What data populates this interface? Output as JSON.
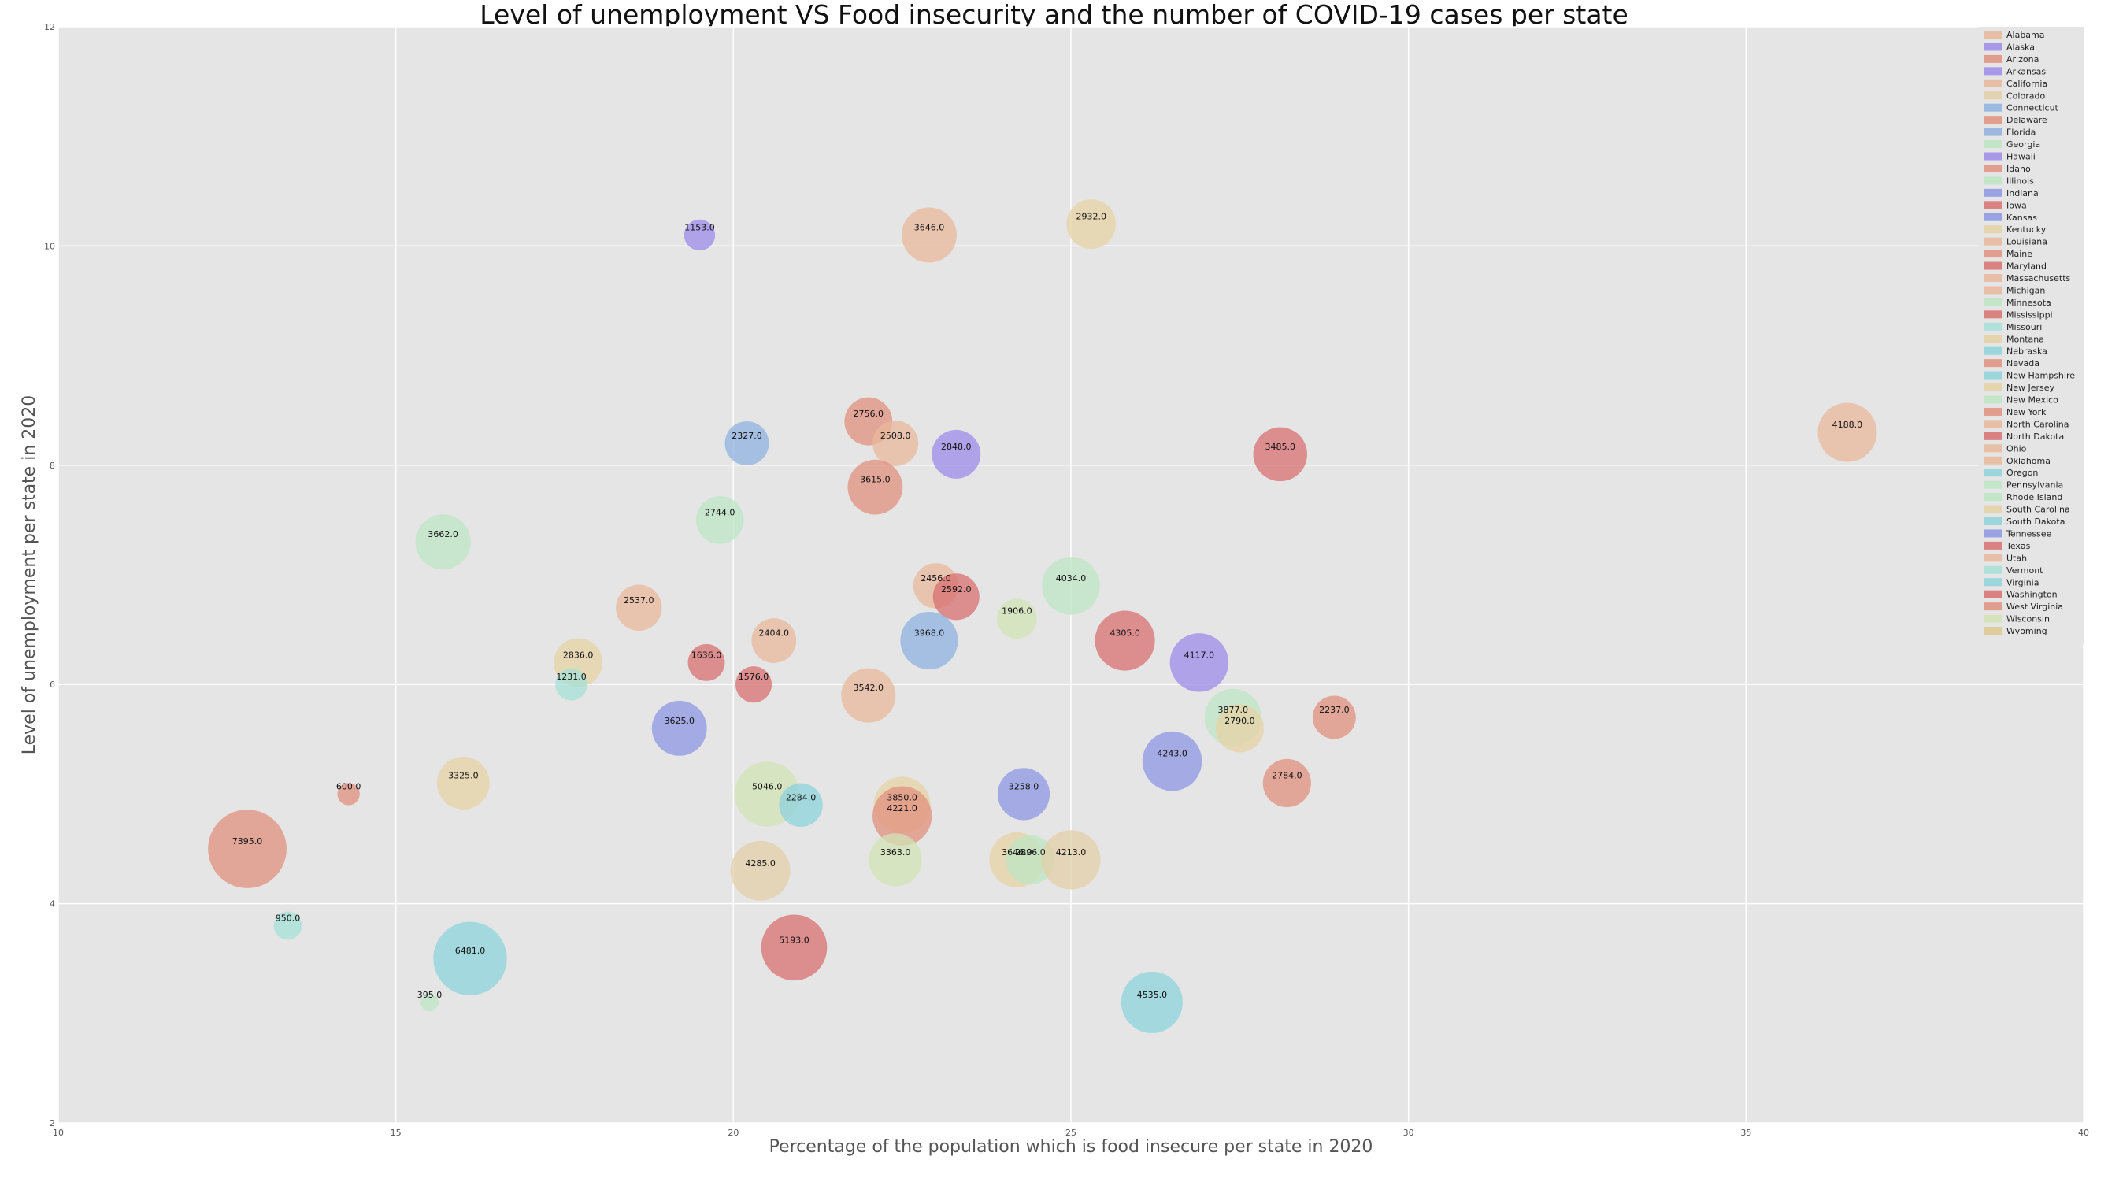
{
  "chart_data": {
    "type": "scatter",
    "title": "Level of unemployment VS Food insecurity and the number of COVID-19 cases per state",
    "xlabel": "Percentage of the population which is food insecure per state in 2020",
    "ylabel": "Level of unemployment per state in 2020",
    "xlim": [
      10,
      40
    ],
    "ylim": [
      2,
      12
    ],
    "xticks": [
      "10",
      "15",
      "20",
      "25",
      "30",
      "35",
      "40"
    ],
    "yticks": [
      "2",
      "4",
      "6",
      "8",
      "10",
      "12"
    ],
    "grid": true,
    "legend_position": "top-right",
    "colors": {
      "plot_bg": "#e5e5e5",
      "grid": "#ffffff",
      "peach": "#e8b89c",
      "purple": "#9d8be8",
      "salmon": "#e0907e",
      "sand": "#e3cfa8",
      "blue": "#8fb2e0",
      "mint": "#bde6c4",
      "red": "#d87070",
      "periwinkle": "#8e97e3",
      "tan": "#e5d2a4",
      "cyan": "#8ed3dc",
      "sage": "#d2e3b5",
      "teal": "#a6e0d8",
      "gold": "#ddc88d"
    },
    "series": [
      {
        "name": "Alabama",
        "color": "peach"
      },
      {
        "name": "Alaska",
        "color": "purple"
      },
      {
        "name": "Arizona",
        "color": "salmon"
      },
      {
        "name": "Arkansas",
        "color": "purple"
      },
      {
        "name": "California",
        "color": "peach"
      },
      {
        "name": "Colorado",
        "color": "sand"
      },
      {
        "name": "Connecticut",
        "color": "blue"
      },
      {
        "name": "Delaware",
        "color": "salmon"
      },
      {
        "name": "Florida",
        "color": "blue"
      },
      {
        "name": "Georgia",
        "color": "mint"
      },
      {
        "name": "Hawaii",
        "color": "purple"
      },
      {
        "name": "Idaho",
        "color": "salmon"
      },
      {
        "name": "Illinois",
        "color": "mint"
      },
      {
        "name": "Indiana",
        "color": "periwinkle"
      },
      {
        "name": "Iowa",
        "color": "red"
      },
      {
        "name": "Kansas",
        "color": "periwinkle"
      },
      {
        "name": "Kentucky",
        "color": "tan"
      },
      {
        "name": "Louisiana",
        "color": "peach"
      },
      {
        "name": "Maine",
        "color": "salmon"
      },
      {
        "name": "Maryland",
        "color": "red"
      },
      {
        "name": "Massachusetts",
        "color": "peach"
      },
      {
        "name": "Michigan",
        "color": "peach"
      },
      {
        "name": "Minnesota",
        "color": "mint"
      },
      {
        "name": "Mississippi",
        "color": "red"
      },
      {
        "name": "Missouri",
        "color": "teal"
      },
      {
        "name": "Montana",
        "color": "tan"
      },
      {
        "name": "Nebraska",
        "color": "cyan"
      },
      {
        "name": "Nevada",
        "color": "salmon"
      },
      {
        "name": "New Hampshire",
        "color": "cyan"
      },
      {
        "name": "New Jersey",
        "color": "tan"
      },
      {
        "name": "New Mexico",
        "color": "mint"
      },
      {
        "name": "New York",
        "color": "salmon"
      },
      {
        "name": "North Carolina",
        "color": "peach"
      },
      {
        "name": "North Dakota",
        "color": "red"
      },
      {
        "name": "Ohio",
        "color": "peach"
      },
      {
        "name": "Oklahoma",
        "color": "peach"
      },
      {
        "name": "Oregon",
        "color": "cyan"
      },
      {
        "name": "Pennsylvania",
        "color": "mint"
      },
      {
        "name": "Rhode Island",
        "color": "mint"
      },
      {
        "name": "South Carolina",
        "color": "tan"
      },
      {
        "name": "South Dakota",
        "color": "cyan"
      },
      {
        "name": "Tennessee",
        "color": "periwinkle"
      },
      {
        "name": "Texas",
        "color": "red"
      },
      {
        "name": "Utah",
        "color": "peach"
      },
      {
        "name": "Vermont",
        "color": "teal"
      },
      {
        "name": "Virginia",
        "color": "cyan"
      },
      {
        "name": "Washington",
        "color": "red"
      },
      {
        "name": "West Virginia",
        "color": "salmon"
      },
      {
        "name": "Wisconsin",
        "color": "sage"
      },
      {
        "name": "Wyoming",
        "color": "gold"
      }
    ],
    "points": [
      {
        "x": 19.5,
        "y": 10.1,
        "value": "1153.0",
        "color": "purple"
      },
      {
        "x": 22.9,
        "y": 10.1,
        "value": "3646.0",
        "color": "peach"
      },
      {
        "x": 25.3,
        "y": 10.2,
        "value": "2932.0",
        "color": "tan"
      },
      {
        "x": 22.0,
        "y": 8.4,
        "value": "2756.0",
        "color": "salmon"
      },
      {
        "x": 22.4,
        "y": 8.2,
        "value": "2508.0",
        "color": "peach"
      },
      {
        "x": 20.2,
        "y": 8.2,
        "value": "2327.0",
        "color": "blue"
      },
      {
        "x": 23.3,
        "y": 8.1,
        "value": "2848.0",
        "color": "purple"
      },
      {
        "x": 28.1,
        "y": 8.1,
        "value": "3485.0",
        "color": "red"
      },
      {
        "x": 36.5,
        "y": 8.3,
        "value": "4188.0",
        "color": "peach"
      },
      {
        "x": 22.1,
        "y": 7.8,
        "value": "3615.0",
        "color": "salmon"
      },
      {
        "x": 19.8,
        "y": 7.5,
        "value": "2744.0",
        "color": "mint"
      },
      {
        "x": 15.7,
        "y": 7.3,
        "value": "3662.0",
        "color": "mint"
      },
      {
        "x": 23.0,
        "y": 6.9,
        "value": "2456.0",
        "color": "peach"
      },
      {
        "x": 23.3,
        "y": 6.8,
        "value": "2592.0",
        "color": "red"
      },
      {
        "x": 25.0,
        "y": 6.9,
        "value": "4034.0",
        "color": "mint"
      },
      {
        "x": 18.6,
        "y": 6.7,
        "value": "2537.0",
        "color": "peach"
      },
      {
        "x": 24.2,
        "y": 6.6,
        "value": "1906.0",
        "color": "sage"
      },
      {
        "x": 20.6,
        "y": 6.4,
        "value": "2404.0",
        "color": "peach"
      },
      {
        "x": 22.9,
        "y": 6.4,
        "value": "3968.0",
        "color": "blue"
      },
      {
        "x": 25.8,
        "y": 6.4,
        "value": "4305.0",
        "color": "red"
      },
      {
        "x": 26.9,
        "y": 6.2,
        "value": "4117.0",
        "color": "purple"
      },
      {
        "x": 17.7,
        "y": 6.2,
        "value": "2836.0",
        "color": "tan"
      },
      {
        "x": 19.6,
        "y": 6.2,
        "value": "1636.0",
        "color": "red"
      },
      {
        "x": 17.6,
        "y": 6.0,
        "value": "1231.0",
        "color": "teal"
      },
      {
        "x": 20.3,
        "y": 6.0,
        "value": "1576.0",
        "color": "red"
      },
      {
        "x": 22.0,
        "y": 5.9,
        "value": "3542.0",
        "color": "peach"
      },
      {
        "x": 27.4,
        "y": 5.7,
        "value": "3877.0",
        "color": "mint"
      },
      {
        "x": 27.5,
        "y": 5.6,
        "value": "2790.0",
        "color": "tan"
      },
      {
        "x": 28.9,
        "y": 5.7,
        "value": "2237.0",
        "color": "salmon"
      },
      {
        "x": 19.2,
        "y": 5.6,
        "value": "3625.0",
        "color": "periwinkle"
      },
      {
        "x": 26.5,
        "y": 5.3,
        "value": "4243.0",
        "color": "periwinkle"
      },
      {
        "x": 16.0,
        "y": 5.1,
        "value": "3325.0",
        "color": "tan"
      },
      {
        "x": 28.2,
        "y": 5.1,
        "value": "2784.0",
        "color": "salmon"
      },
      {
        "x": 14.3,
        "y": 5.0,
        "value": "600.0",
        "color": "salmon"
      },
      {
        "x": 20.5,
        "y": 5.0,
        "value": "5046.0",
        "color": "sage"
      },
      {
        "x": 21.0,
        "y": 4.9,
        "value": "2284.0",
        "color": "cyan"
      },
      {
        "x": 22.5,
        "y": 4.9,
        "value": "3850.0",
        "color": "tan"
      },
      {
        "x": 22.5,
        "y": 4.8,
        "value": "4221.0",
        "color": "salmon"
      },
      {
        "x": 24.3,
        "y": 5.0,
        "value": "3258.0",
        "color": "periwinkle"
      },
      {
        "x": 12.8,
        "y": 4.5,
        "value": "7395.0",
        "color": "salmon"
      },
      {
        "x": 22.4,
        "y": 4.4,
        "value": "3363.0",
        "color": "sage"
      },
      {
        "x": 24.2,
        "y": 4.4,
        "value": "3646.0",
        "color": "tan"
      },
      {
        "x": 24.4,
        "y": 4.4,
        "value": "2896.0",
        "color": "mint"
      },
      {
        "x": 25.0,
        "y": 4.4,
        "value": "4213.0",
        "color": "sand"
      },
      {
        "x": 20.4,
        "y": 4.3,
        "value": "4285.0",
        "color": "sand"
      },
      {
        "x": 13.4,
        "y": 3.8,
        "value": "950.0",
        "color": "teal"
      },
      {
        "x": 16.1,
        "y": 3.5,
        "value": "6481.0",
        "color": "cyan"
      },
      {
        "x": 20.9,
        "y": 3.6,
        "value": "5193.0",
        "color": "red"
      },
      {
        "x": 15.5,
        "y": 3.1,
        "value": "395.0",
        "color": "mint"
      },
      {
        "x": 26.2,
        "y": 3.1,
        "value": "4535.0",
        "color": "cyan"
      }
    ]
  }
}
